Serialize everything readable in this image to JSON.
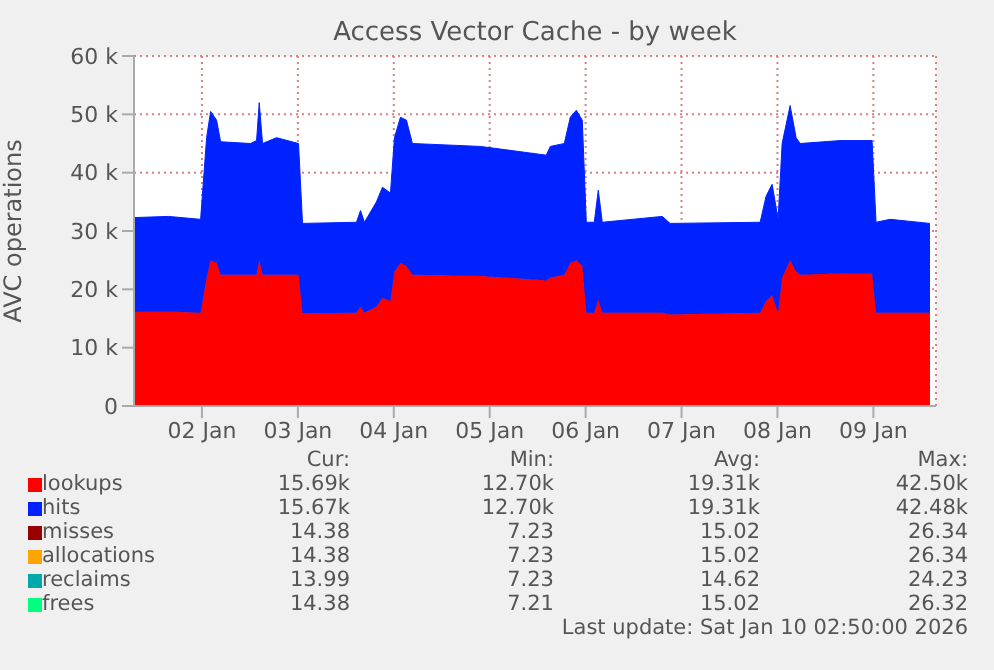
{
  "chart_data": {
    "type": "area",
    "title": "Access Vector Cache - by week",
    "ylabel": "AVC operations",
    "stacked": true,
    "grid": true,
    "legend": "bottom",
    "x": [
      "2026-01-01T07:00",
      "2026-01-01T15:40",
      "2026-01-01T23:40",
      "2026-01-02T01:10",
      "2026-01-02T02:10",
      "2026-01-02T03:40",
      "2026-01-02T04:40",
      "2026-01-02T12:10",
      "2026-01-02T13:40",
      "2026-01-02T14:20",
      "2026-01-02T15:10",
      "2026-01-02T18:40",
      "2026-01-03T00:10",
      "2026-01-03T01:10",
      "2026-01-03T14:40",
      "2026-01-03T15:40",
      "2026-01-03T16:40",
      "2026-01-03T19:40",
      "2026-01-03T21:10",
      "2026-01-03T23:10",
      "2026-01-04T00:10",
      "2026-01-04T01:40",
      "2026-01-04T03:10",
      "2026-01-04T04:40",
      "2026-01-04T21:40",
      "2026-01-05T14:10",
      "2026-01-05T15:10",
      "2026-01-05T18:40",
      "2026-01-05T20:10",
      "2026-01-05T21:40",
      "2026-01-05T23:10",
      "2026-01-06T00:10",
      "2026-01-06T02:10",
      "2026-01-06T03:10",
      "2026-01-06T04:10",
      "2026-01-06T19:10",
      "2026-01-06T21:10",
      "2026-01-07T19:40",
      "2026-01-07T21:10",
      "2026-01-07T22:40",
      "2026-01-08T00:10",
      "2026-01-08T01:10",
      "2026-01-08T03:10",
      "2026-01-08T04:40",
      "2026-01-08T05:40",
      "2026-01-08T15:40",
      "2026-01-08T23:40",
      "2026-01-09T00:40",
      "2026-01-09T04:10",
      "2026-01-09T14:10"
    ],
    "xlim": [
      "2026-01-01T07:00",
      "2026-01-09T15:40"
    ],
    "xticks": [
      {
        "value": "2026-01-02",
        "label": "02 Jan"
      },
      {
        "value": "2026-01-03",
        "label": "03 Jan"
      },
      {
        "value": "2026-01-04",
        "label": "04 Jan"
      },
      {
        "value": "2026-01-05",
        "label": "05 Jan"
      },
      {
        "value": "2026-01-06",
        "label": "06 Jan"
      },
      {
        "value": "2026-01-07",
        "label": "07 Jan"
      },
      {
        "value": "2026-01-08",
        "label": "08 Jan"
      },
      {
        "value": "2026-01-09",
        "label": "09 Jan"
      }
    ],
    "ylim": [
      0,
      60000
    ],
    "yticks": [
      0,
      {
        "value": 10000,
        "label": "10 k"
      },
      {
        "value": 20000,
        "label": "20 k"
      },
      {
        "value": 30000,
        "label": "30 k"
      },
      {
        "value": 40000,
        "label": "40 k"
      },
      {
        "value": 50000,
        "label": "50 k"
      },
      {
        "value": 60000,
        "label": "60 k"
      }
    ],
    "series": [
      {
        "name": "lookups",
        "color": "#ff0000",
        "values": [
          16100,
          16200,
          16000,
          22000,
          25000,
          24500,
          22500,
          22500,
          22500,
          25000,
          22500,
          22500,
          22500,
          15900,
          16000,
          17000,
          16000,
          17000,
          18500,
          18000,
          23000,
          24500,
          24000,
          22500,
          22300,
          21500,
          22000,
          22500,
          24500,
          25000,
          24000,
          16000,
          16000,
          18200,
          16000,
          16000,
          15700,
          16000,
          18000,
          19000,
          16000,
          22000,
          25000,
          23000,
          22500,
          22700,
          22700,
          16000,
          16000,
          16000
        ]
      },
      {
        "name": "hits",
        "color": "#0022ff",
        "values": [
          16200,
          16300,
          16000,
          24000,
          25500,
          24500,
          22800,
          22500,
          23000,
          27000,
          22500,
          23500,
          22500,
          15400,
          15500,
          16500,
          15500,
          18000,
          19000,
          18500,
          23000,
          25000,
          25000,
          22500,
          22200,
          21500,
          22500,
          22500,
          25000,
          25700,
          25000,
          15500,
          15500,
          18800,
          15500,
          16500,
          15600,
          15500,
          18000,
          19000,
          16000,
          23000,
          26500,
          23000,
          22500,
          22800,
          22800,
          15500,
          16000,
          15300
        ]
      },
      {
        "name": "misses",
        "color": "#990000",
        "values": [
          null,
          null,
          null,
          null,
          null,
          null,
          null,
          null,
          null,
          null,
          null,
          null,
          null,
          null,
          null,
          null,
          null,
          null,
          null,
          null,
          null,
          null,
          null,
          null,
          null,
          null,
          null,
          null,
          null,
          null,
          null,
          null,
          null,
          null,
          null,
          null,
          null,
          null,
          null,
          null,
          null,
          null,
          null,
          null,
          null,
          null,
          null,
          null,
          null,
          null
        ]
      },
      {
        "name": "allocations",
        "color": "#ffa500",
        "values": [
          null,
          null,
          null,
          null,
          null,
          null,
          null,
          null,
          null,
          null,
          null,
          null,
          null,
          null,
          null,
          null,
          null,
          null,
          null,
          null,
          null,
          null,
          null,
          null,
          null,
          null,
          null,
          null,
          null,
          null,
          null,
          null,
          null,
          null,
          null,
          null,
          null,
          null,
          null,
          null,
          null,
          null,
          null,
          null,
          null,
          null,
          null,
          null,
          null,
          null
        ]
      },
      {
        "name": "reclaims",
        "color": "#00aaaa",
        "values": [
          null,
          null,
          null,
          null,
          null,
          null,
          null,
          null,
          null,
          null,
          null,
          null,
          null,
          null,
          null,
          null,
          null,
          null,
          null,
          null,
          null,
          null,
          null,
          null,
          null,
          null,
          null,
          null,
          null,
          null,
          null,
          null,
          null,
          null,
          null,
          null,
          null,
          null,
          null,
          null,
          null,
          null,
          null,
          null,
          null,
          null,
          null,
          null,
          null,
          null
        ]
      },
      {
        "name": "frees",
        "color": "#00ff7f",
        "values": [
          null,
          null,
          null,
          null,
          null,
          null,
          null,
          null,
          null,
          null,
          null,
          null,
          null,
          null,
          null,
          null,
          null,
          null,
          null,
          null,
          null,
          null,
          null,
          null,
          null,
          null,
          null,
          null,
          null,
          null,
          null,
          null,
          null,
          null,
          null,
          null,
          null,
          null,
          null,
          null,
          null,
          null,
          null,
          null,
          null,
          null,
          null,
          null,
          null,
          null
        ]
      }
    ],
    "annotations": [
      "Cur:",
      "Min:",
      "Avg:",
      "Max:",
      "15.69k",
      "12.70k",
      "19.31k",
      "42.50k",
      "15.67k",
      "12.70k",
      "19.31k",
      "42.48k",
      "14.38",
      "7.23",
      "15.02",
      "26.34",
      "14.38",
      "7.23",
      "15.02",
      "26.34",
      "13.99",
      "7.23",
      "14.62",
      "24.23",
      "14.38",
      "7.21",
      "15.02",
      "26.32",
      "Last update: Sat Jan 10 02:50:00 2026"
    ]
  }
}
